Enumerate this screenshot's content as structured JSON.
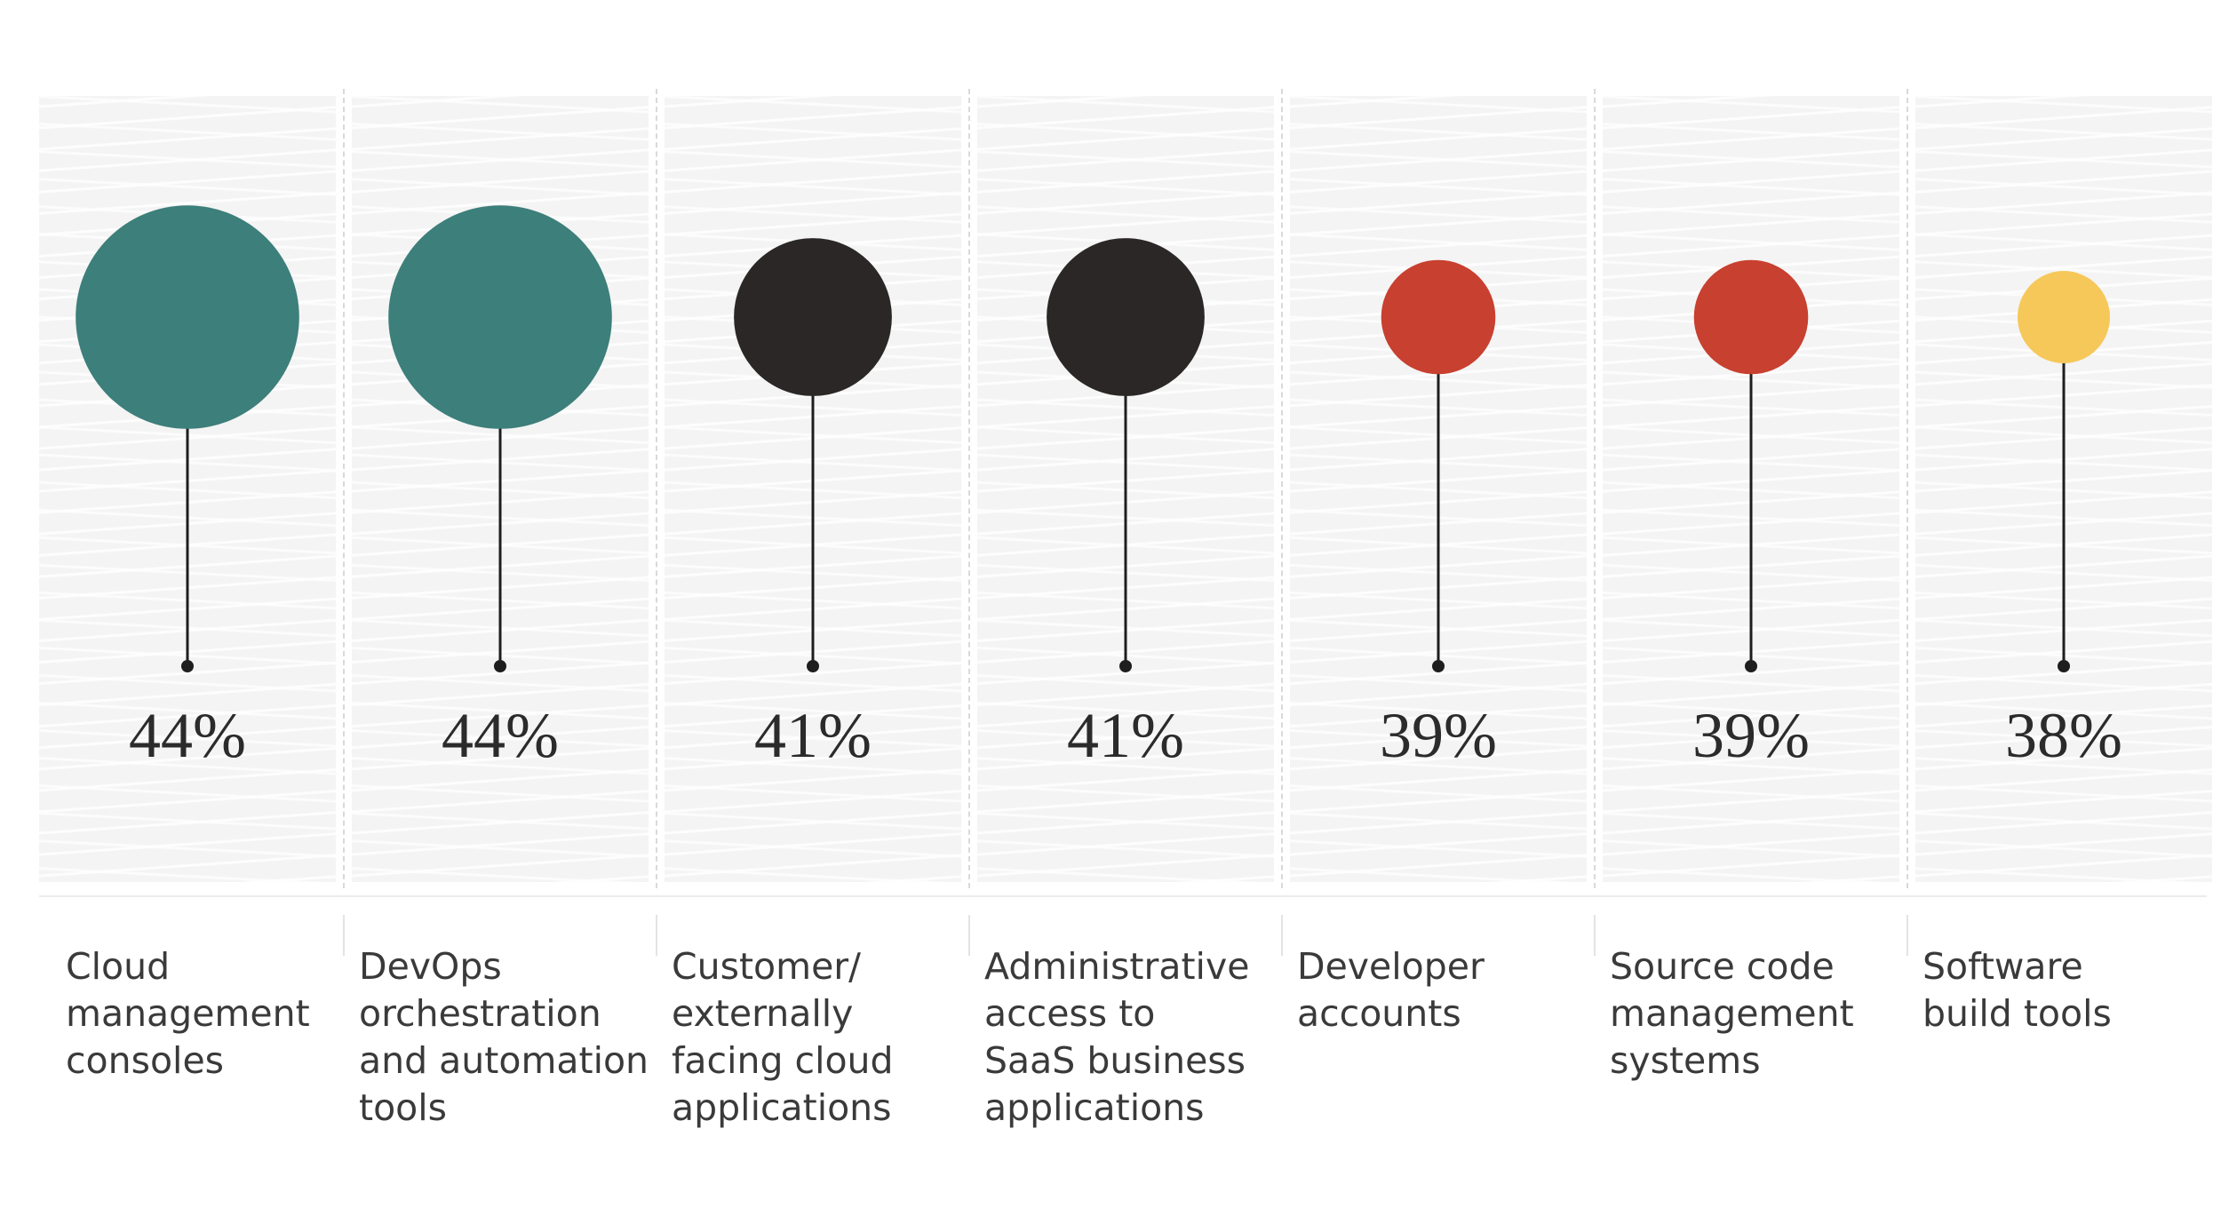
{
  "chart_data": {
    "type": "bubble",
    "categories": [
      "Cloud\nmanagement\nconsoles",
      "DevOps\norchestration\nand automation\ntools",
      "Customer/\nexternally\nfacing cloud\napplications",
      "Administrative\naccess to\nSaaS business\napplications",
      "Developer\naccounts",
      "Source code\nmanagement\nsystems",
      "Software\nbuild tools"
    ],
    "values": [
      44,
      44,
      41,
      41,
      39,
      39,
      38
    ],
    "value_labels": [
      "44%",
      "44%",
      "41%",
      "41%",
      "39%",
      "39%",
      "38%"
    ],
    "unit": "%",
    "colors": [
      "#3d7f7a",
      "#3d7f7a",
      "#2a2726",
      "#2a2726",
      "#c8402f",
      "#c8402f",
      "#f6c85a"
    ],
    "stem_color": "#1e1e1e",
    "grid": false
  }
}
